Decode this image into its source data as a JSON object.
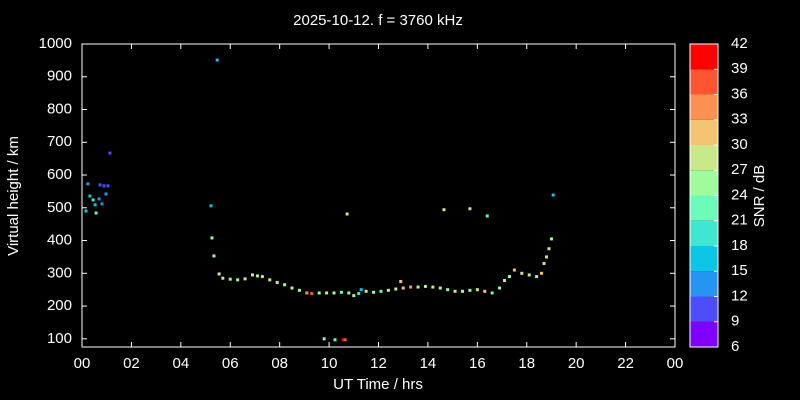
{
  "chart_data": {
    "type": "scatter",
    "title": "2025-10-12. f = 3760 kHz",
    "x_label": "UT Time / hrs",
    "y_label": "Virtual height / km",
    "xlim": [
      0,
      24
    ],
    "xticks": [
      {
        "value": 0,
        "label": "00"
      },
      {
        "value": 2,
        "label": "02"
      },
      {
        "value": 4,
        "label": "04"
      },
      {
        "value": 6,
        "label": "06"
      },
      {
        "value": 8,
        "label": "08"
      },
      10,
      12,
      14,
      16,
      18,
      20,
      22,
      {
        "value": 24,
        "label": "00"
      }
    ],
    "ylim": [
      75,
      1000
    ],
    "yticks": [
      100,
      200,
      300,
      400,
      500,
      600,
      700,
      800,
      900,
      1000
    ],
    "x": [
      0.16,
      0.24,
      0.32,
      0.45,
      0.53,
      0.57,
      0.69,
      0.73,
      0.81,
      0.89,
      0.97,
      1.05,
      1.13,
      5.47,
      5.22,
      5.26,
      5.34,
      5.55,
      5.7,
      6.0,
      6.3,
      6.6,
      6.9,
      7.1,
      7.3,
      7.6,
      7.9,
      8.2,
      8.5,
      8.8,
      9.1,
      9.3,
      9.6,
      9.9,
      10.2,
      10.5,
      10.8,
      11.0,
      11.2,
      11.5,
      11.8,
      12.1,
      12.4,
      12.7,
      13.0,
      13.3,
      13.6,
      13.9,
      14.2,
      14.5,
      14.8,
      15.1,
      15.4,
      15.7,
      16.0,
      16.3,
      16.6,
      16.9,
      17.1,
      17.3,
      17.5,
      17.8,
      18.1,
      18.4,
      18.6,
      18.7,
      18.8,
      18.9,
      19.0,
      10.73,
      14.65,
      15.7,
      16.4,
      19.07,
      9.8,
      10.24,
      10.57,
      10.65,
      11.3,
      12.9
    ],
    "values": [
      490,
      573,
      536,
      524,
      509,
      484,
      527,
      570,
      512,
      567,
      542,
      567,
      667,
      951,
      506,
      408,
      353,
      298,
      285,
      282,
      280,
      283,
      295,
      292,
      290,
      280,
      272,
      265,
      255,
      248,
      240,
      238,
      240,
      240,
      240,
      242,
      240,
      232,
      238,
      245,
      242,
      245,
      248,
      252,
      255,
      258,
      258,
      260,
      258,
      255,
      250,
      245,
      245,
      248,
      250,
      245,
      240,
      255,
      278,
      290,
      310,
      300,
      295,
      290,
      300,
      330,
      350,
      375,
      405,
      481,
      494,
      497,
      475,
      539,
      100,
      97,
      97,
      97,
      250,
      275
    ],
    "snr": [
      17,
      13,
      17,
      19,
      17,
      21,
      12,
      11,
      14,
      10,
      13,
      11,
      10,
      17,
      16,
      24,
      26,
      27,
      27,
      26,
      25,
      27,
      28,
      26,
      27,
      27,
      26,
      25,
      27,
      26,
      33,
      36,
      26,
      27,
      25,
      21,
      27,
      26,
      19,
      28,
      26,
      22,
      25,
      27,
      30,
      33,
      26,
      28,
      27,
      26,
      25,
      27,
      24,
      26,
      28,
      30,
      22,
      24,
      27,
      26,
      31,
      29,
      27,
      28,
      32,
      29,
      28,
      27,
      26,
      27,
      28,
      29,
      23,
      17,
      26,
      22,
      41,
      38,
      16,
      30
    ],
    "colorbar": {
      "label": "SNR / dB",
      "lim": [
        6,
        42
      ],
      "ticks": [
        6,
        9,
        12,
        15,
        18,
        21,
        24,
        27,
        30,
        33,
        36,
        39,
        42
      ],
      "colors": [
        "#7f00ff",
        "#4d4dfc",
        "#2595f3",
        "#0cc6e7",
        "#3fe6d2",
        "#6cfbb8",
        "#9ffb9c",
        "#c8e88a",
        "#f2c471",
        "#ff9053",
        "#ff5530",
        "#ff0000"
      ]
    }
  }
}
